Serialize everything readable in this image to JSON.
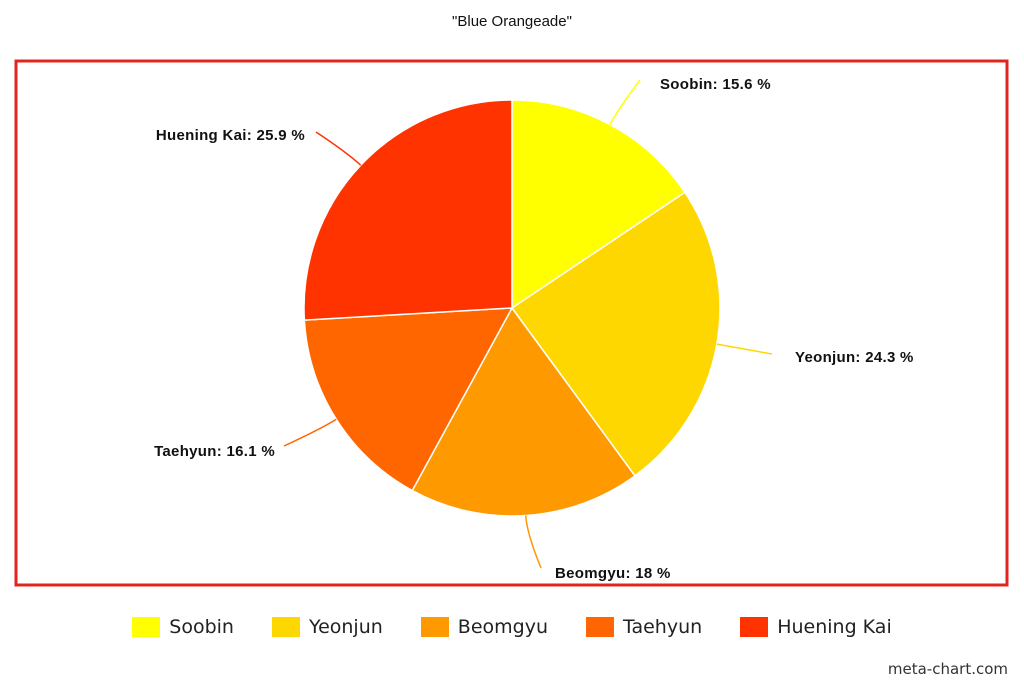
{
  "chart_data": {
    "type": "pie",
    "title": "\"Blue Orangeade\"",
    "slices": [
      {
        "label": "Soobin",
        "value": 15.6,
        "color": "#FFFF00",
        "data_label": "Soobin: 15.6 %"
      },
      {
        "label": "Yeonjun",
        "value": 24.3,
        "color": "#FFD700",
        "data_label": "Yeonjun: 24.3 %"
      },
      {
        "label": "Beomgyu",
        "value": 18,
        "color": "#FF9900",
        "data_label": "Beomgyu: 18 %"
      },
      {
        "label": "Taehyun",
        "value": 16.1,
        "color": "#FF6600",
        "data_label": "Taehyun: 16.1 %"
      },
      {
        "label": "Huening Kai",
        "value": 25.9,
        "color": "#FF3300",
        "data_label": "Huening Kai: 25.9 %"
      }
    ],
    "legend_position": "bottom",
    "frame_color": "#E0261E"
  },
  "watermark": "meta-chart.com"
}
